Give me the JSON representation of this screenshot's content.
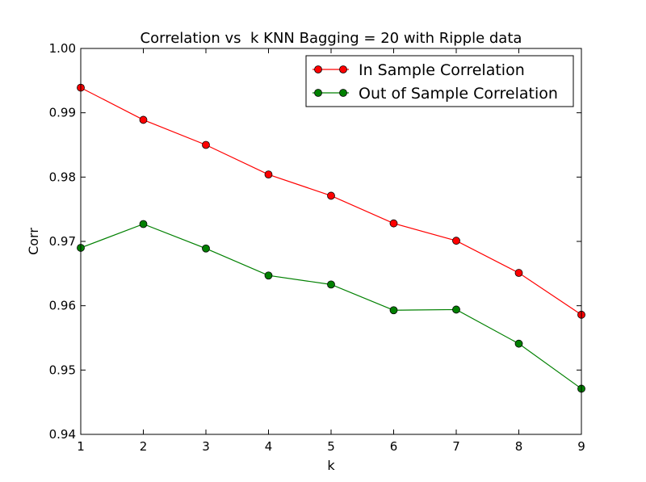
{
  "chart_data": {
    "type": "line",
    "title": "Correlation vs  k KNN Bagging = 20 with Ripple data",
    "xlabel": "k",
    "ylabel": "Corr",
    "xlim": [
      1,
      9
    ],
    "ylim": [
      0.94,
      1.0
    ],
    "x": [
      1,
      2,
      3,
      4,
      5,
      6,
      7,
      8,
      9
    ],
    "xticks": [
      "1",
      "2",
      "3",
      "4",
      "5",
      "6",
      "7",
      "8",
      "9"
    ],
    "yticks": [
      "0.94",
      "0.95",
      "0.96",
      "0.97",
      "0.98",
      "0.99",
      "1.00"
    ],
    "grid": false,
    "legend_position": "top-right",
    "series": [
      {
        "name": "In Sample Correlation",
        "color": "#ff0000",
        "values": [
          0.9939,
          0.9889,
          0.985,
          0.9804,
          0.9771,
          0.9728,
          0.9701,
          0.9651,
          0.9586
        ]
      },
      {
        "name": "Out of Sample Correlation",
        "color": "#008000",
        "values": [
          0.969,
          0.9727,
          0.9689,
          0.9647,
          0.9633,
          0.9593,
          0.9594,
          0.9541,
          0.9471
        ]
      }
    ]
  }
}
